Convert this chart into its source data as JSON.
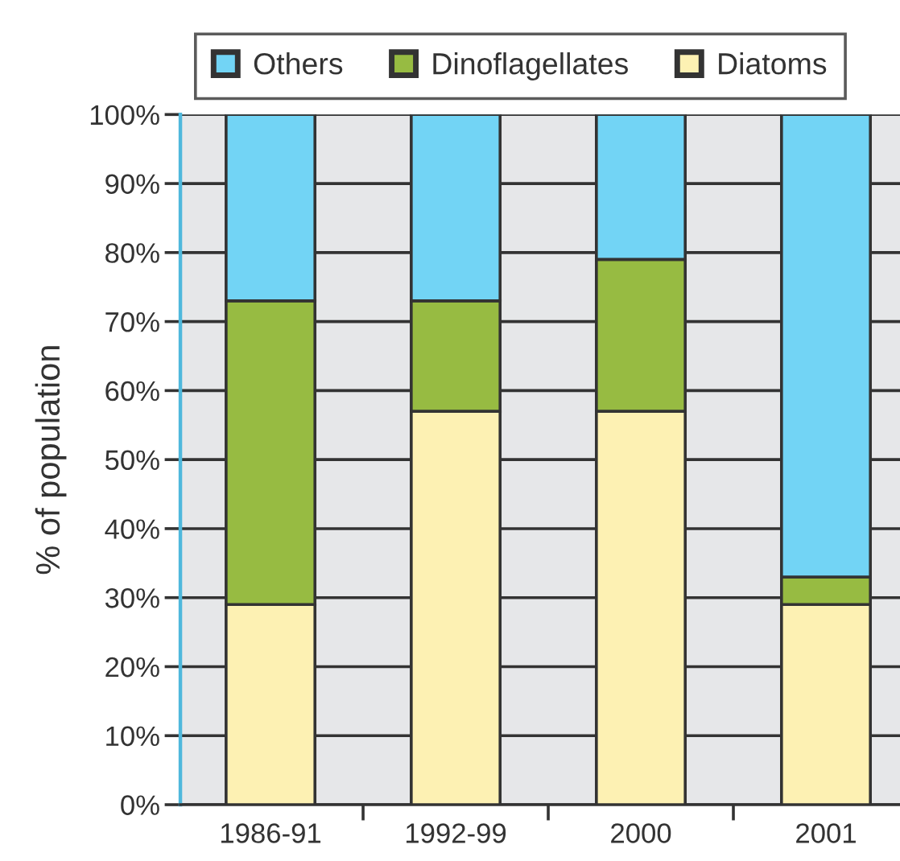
{
  "chart_data": {
    "type": "bar",
    "stacked": true,
    "ylabel": "% of population",
    "categories": [
      "1986-91",
      "1992-99",
      "2000",
      "2001"
    ],
    "series": [
      {
        "name": "Diatoms",
        "color": "#fdf1b3",
        "values": [
          29,
          57,
          57,
          29
        ]
      },
      {
        "name": "Dinoflagellates",
        "color": "#97bb42",
        "values": [
          44,
          16,
          22,
          4
        ]
      },
      {
        "name": "Others",
        "color": "#72d4f5",
        "values": [
          27,
          27,
          21,
          67
        ]
      }
    ],
    "ylim": [
      0,
      100
    ],
    "yticks": [
      {
        "value": 0,
        "label": "0%"
      },
      {
        "value": 10,
        "label": "10%"
      },
      {
        "value": 20,
        "label": "20%"
      },
      {
        "value": 30,
        "label": "30%"
      },
      {
        "value": 40,
        "label": "40%"
      },
      {
        "value": 50,
        "label": "50%"
      },
      {
        "value": 60,
        "label": "60%"
      },
      {
        "value": 70,
        "label": "70%"
      },
      {
        "value": 80,
        "label": "80%"
      },
      {
        "value": 90,
        "label": "90%"
      },
      {
        "value": 100,
        "label": "100%"
      }
    ],
    "grid": "y",
    "legend": "top"
  }
}
